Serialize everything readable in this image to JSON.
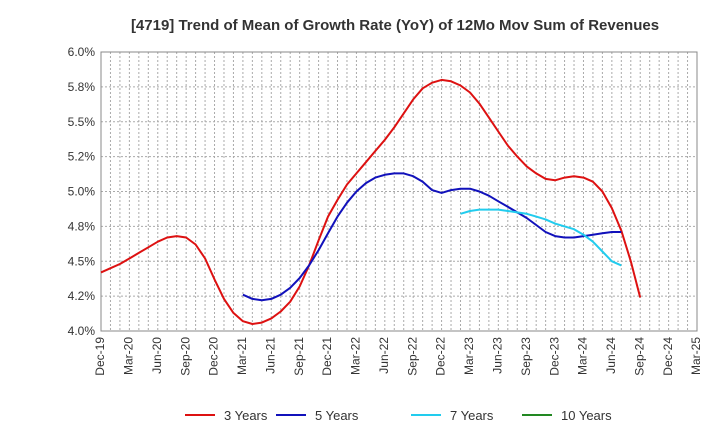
{
  "chart_data": {
    "type": "line",
    "title": "[4719]  Trend of Mean of Growth Rate (YoY) of 12Mo Mov Sum of Revenues",
    "xlabel": "",
    "ylabel": "",
    "ylim": [
      4.0,
      6.0
    ],
    "yticks": [
      4.0,
      4.25,
      4.5,
      4.75,
      5.0,
      5.25,
      5.5,
      5.75,
      6.0
    ],
    "ytick_labels": [
      "4.0%",
      "4.2%",
      "4.5%",
      "4.8%",
      "5.0%",
      "5.2%",
      "5.5%",
      "5.8%",
      "6.0%"
    ],
    "x_tick_labels": [
      "Dec-19",
      "Mar-20",
      "Jun-20",
      "Sep-20",
      "Dec-20",
      "Mar-21",
      "Jun-21",
      "Sep-21",
      "Dec-21",
      "Mar-22",
      "Jun-22",
      "Sep-22",
      "Dec-22",
      "Mar-23",
      "Jun-23",
      "Sep-23",
      "Dec-23",
      "Mar-24",
      "Jun-24",
      "Sep-24",
      "Dec-24",
      "Mar-25"
    ],
    "grid": true,
    "legend_position": "bottom",
    "series": [
      {
        "name": "3 Years",
        "color": "#dd1111",
        "start_index": 0,
        "values": [
          4.42,
          4.45,
          4.48,
          4.52,
          4.56,
          4.6,
          4.64,
          4.67,
          4.68,
          4.67,
          4.62,
          4.52,
          4.37,
          4.23,
          4.13,
          4.07,
          4.05,
          4.06,
          4.09,
          4.14,
          4.21,
          4.32,
          4.47,
          4.65,
          4.82,
          4.94,
          5.05,
          5.13,
          5.21,
          5.29,
          5.37,
          5.46,
          5.56,
          5.66,
          5.74,
          5.78,
          5.8,
          5.79,
          5.76,
          5.71,
          5.63,
          5.53,
          5.43,
          5.33,
          5.25,
          5.18,
          5.13,
          5.09,
          5.08,
          5.1,
          5.11,
          5.1,
          5.07,
          5.0,
          4.88,
          4.72,
          4.5,
          4.24
        ]
      },
      {
        "name": "5 Years",
        "color": "#1111bb",
        "start_index": 15,
        "values": [
          4.26,
          4.23,
          4.22,
          4.23,
          4.26,
          4.31,
          4.38,
          4.47,
          4.58,
          4.7,
          4.82,
          4.92,
          5.0,
          5.06,
          5.1,
          5.12,
          5.13,
          5.13,
          5.11,
          5.07,
          5.01,
          4.99,
          5.01,
          5.02,
          5.02,
          5.0,
          4.97,
          4.93,
          4.89,
          4.85,
          4.81,
          4.76,
          4.71,
          4.68,
          4.67,
          4.67,
          4.68,
          4.69,
          4.7,
          4.71,
          4.71
        ]
      },
      {
        "name": "7 Years",
        "color": "#22ccee",
        "start_index": 38,
        "values": [
          4.84,
          4.86,
          4.87,
          4.87,
          4.87,
          4.86,
          4.85,
          4.84,
          4.82,
          4.8,
          4.77,
          4.75,
          4.73,
          4.69,
          4.64,
          4.57,
          4.5,
          4.47
        ]
      },
      {
        "name": "10 Years",
        "color": "#228822",
        "start_index": 0,
        "values": []
      }
    ]
  }
}
